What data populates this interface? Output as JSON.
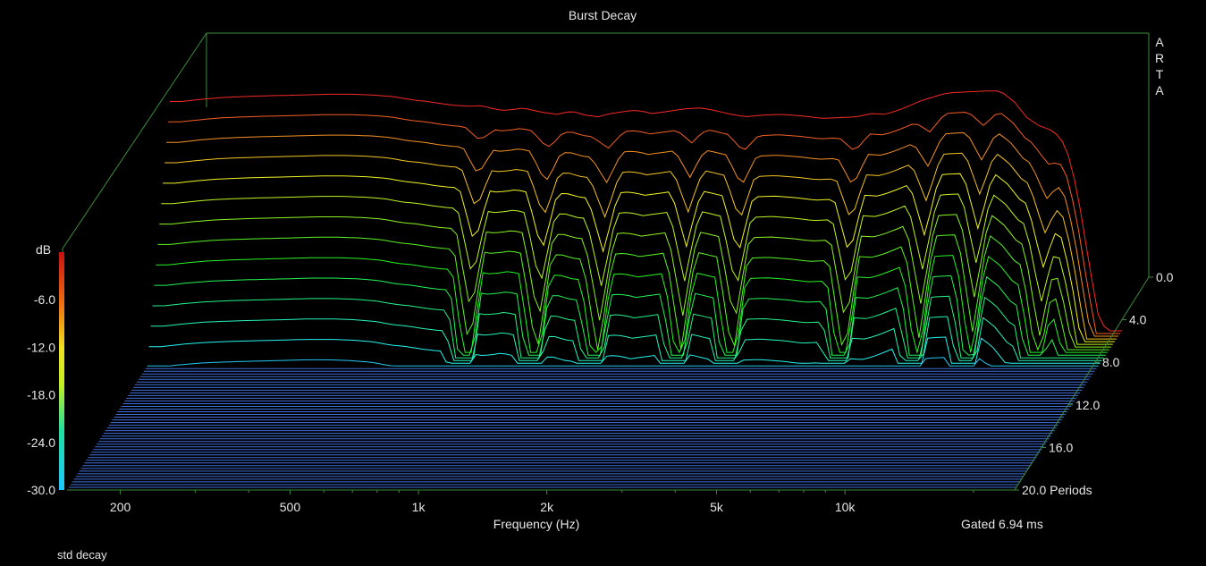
{
  "chart_data": {
    "type": "waterfall",
    "title": "Burst Decay",
    "xlabel": "Frequency (Hz)",
    "x_scale": "log",
    "xlim": [
      150,
      25000
    ],
    "x_ticks": [
      {
        "value": 200,
        "label": "200"
      },
      {
        "value": 500,
        "label": "500"
      },
      {
        "value": 1000,
        "label": "1k"
      },
      {
        "value": 2000,
        "label": "2k"
      },
      {
        "value": 5000,
        "label": "5k"
      },
      {
        "value": 10000,
        "label": "10k"
      }
    ],
    "z_label": "dB",
    "zlim": [
      -30,
      0
    ],
    "z_ticks": [
      "-6.0",
      "-12.0",
      "-18.0",
      "-24.0",
      "-30.0"
    ],
    "y_unit": "Periods",
    "ylim": [
      0,
      20
    ],
    "y_ticks": [
      "0.0",
      "4.0",
      "8.0",
      "12.0",
      "16.0",
      "20.0 Periods"
    ],
    "gating": "Gated 6.94 ms",
    "decay_mode": "std decay",
    "brand_letters": [
      "A",
      "R",
      "T",
      "A"
    ],
    "initial_response": {
      "freq_hz": [
        160,
        180,
        200,
        220,
        250,
        300,
        350,
        400,
        450,
        500,
        550,
        600,
        650,
        700,
        750,
        800,
        850,
        900,
        950,
        1000,
        1100,
        1200,
        1300,
        1400,
        1500,
        1600,
        1700,
        1800,
        1900,
        2000,
        2200,
        2400,
        2600,
        2800,
        3000,
        3300,
        3600,
        4000,
        4500,
        5000,
        5500,
        6000,
        6500,
        7000,
        7500,
        8000,
        8500,
        9000,
        9500,
        10000,
        11000,
        12000,
        13000,
        14000,
        15000,
        16000,
        17000,
        18000,
        19000,
        20000,
        21000,
        22000,
        23000
      ],
      "level_db": [
        -1.5,
        -1.2,
        -1.0,
        -0.9,
        -0.8,
        -0.7,
        -0.6,
        -0.6,
        -0.7,
        -0.9,
        -1.3,
        -1.5,
        -1.8,
        -2.0,
        -2.1,
        -2.0,
        -2.4,
        -2.6,
        -2.5,
        -2.3,
        -2.8,
        -3.1,
        -2.7,
        -3.2,
        -3.4,
        -3.0,
        -2.8,
        -2.6,
        -2.7,
        -3.0,
        -2.7,
        -2.4,
        -2.3,
        -2.6,
        -3.0,
        -3.4,
        -3.2,
        -3.1,
        -3.3,
        -3.6,
        -3.5,
        -3.4,
        -3.0,
        -3.1,
        -2.6,
        -2.0,
        -1.4,
        -1.0,
        -0.6,
        -0.4,
        -0.3,
        -0.2,
        -0.2,
        -1.5,
        -3.5,
        -4.5,
        -5.0,
        -6.0,
        -9.0,
        -15.0,
        -22.0,
        -28.0,
        -30.0
      ]
    },
    "notches_hz": [
      800,
      1150,
      1600,
      2500,
      3300,
      6000,
      9000,
      12000,
      17000
    ],
    "resonances": [
      {
        "freq_hz": 2000,
        "extends_to_periods": 8
      },
      {
        "freq_hz": 3000,
        "extends_to_periods": 12
      },
      {
        "freq_hz": 10000,
        "extends_to_periods": 10
      }
    ],
    "slice_count": 60,
    "grid": false
  }
}
